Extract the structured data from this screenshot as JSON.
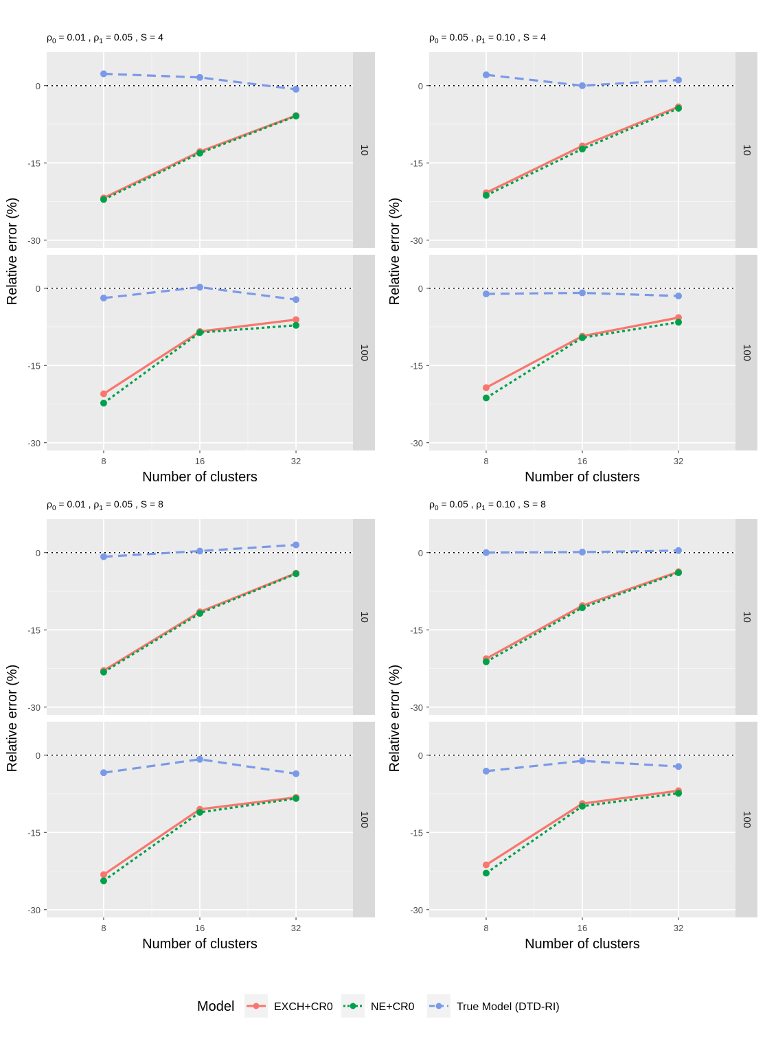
{
  "legend": {
    "title": "Model",
    "items": [
      {
        "label": "EXCH+CR0",
        "color": "#F8766D",
        "dash": "solid"
      },
      {
        "label": "NE+CR0",
        "color": "#00A14B",
        "dash": "dotted"
      },
      {
        "label": "True Model (DTD-RI)",
        "color": "#7A9AE8",
        "dash": "dashed"
      }
    ]
  },
  "chart_data": [
    {
      "type": "line",
      "title": {
        "rho0": "0.01",
        "rho1": "0.05",
        "S": "4"
      },
      "xlabel": "Number of clusters",
      "ylabel": "Relative error (%)",
      "categories": [
        "8",
        "16",
        "32"
      ],
      "yticks": [
        0,
        -15,
        -30
      ],
      "ylim": [
        -31.5,
        6.5
      ],
      "facets": [
        {
          "strip": "10",
          "series": [
            {
              "name": "EXCH+CR0",
              "values": [
                -21.8,
                -12.8,
                -5.8
              ]
            },
            {
              "name": "NE+CR0",
              "values": [
                -22.1,
                -13.1,
                -5.9
              ]
            },
            {
              "name": "True Model (DTD-RI)",
              "values": [
                2.3,
                1.6,
                -0.7
              ]
            }
          ]
        },
        {
          "strip": "100",
          "series": [
            {
              "name": "EXCH+CR0",
              "values": [
                -20.5,
                -8.4,
                -6.1
              ]
            },
            {
              "name": "NE+CR0",
              "values": [
                -22.3,
                -8.6,
                -7.2
              ]
            },
            {
              "name": "True Model (DTD-RI)",
              "values": [
                -1.9,
                0.2,
                -2.2
              ]
            }
          ]
        }
      ]
    },
    {
      "type": "line",
      "title": {
        "rho0": "0.05",
        "rho1": "0.10",
        "S": "4"
      },
      "xlabel": "Number of clusters",
      "ylabel": "Relative error (%)",
      "categories": [
        "8",
        "16",
        "32"
      ],
      "yticks": [
        0,
        -15,
        -30
      ],
      "ylim": [
        -31.5,
        6.5
      ],
      "facets": [
        {
          "strip": "10",
          "series": [
            {
              "name": "EXCH+CR0",
              "values": [
                -20.8,
                -11.7,
                -4.1
              ]
            },
            {
              "name": "NE+CR0",
              "values": [
                -21.3,
                -12.3,
                -4.4
              ]
            },
            {
              "name": "True Model (DTD-RI)",
              "values": [
                2.1,
                0.0,
                1.1
              ]
            }
          ]
        },
        {
          "strip": "100",
          "series": [
            {
              "name": "EXCH+CR0",
              "values": [
                -19.3,
                -9.3,
                -5.7
              ]
            },
            {
              "name": "NE+CR0",
              "values": [
                -21.3,
                -9.6,
                -6.6
              ]
            },
            {
              "name": "True Model (DTD-RI)",
              "values": [
                -1.1,
                -0.9,
                -1.5
              ]
            }
          ]
        }
      ]
    },
    {
      "type": "line",
      "title": {
        "rho0": "0.01",
        "rho1": "0.05",
        "S": "8"
      },
      "xlabel": "Number of clusters",
      "ylabel": "Relative error (%)",
      "categories": [
        "8",
        "16",
        "32"
      ],
      "yticks": [
        0,
        -15,
        -30
      ],
      "ylim": [
        -31.5,
        6.5
      ],
      "facets": [
        {
          "strip": "10",
          "series": [
            {
              "name": "EXCH+CR0",
              "values": [
                -22.9,
                -11.5,
                -4.0
              ]
            },
            {
              "name": "NE+CR0",
              "values": [
                -23.2,
                -11.8,
                -4.1
              ]
            },
            {
              "name": "True Model (DTD-RI)",
              "values": [
                -0.8,
                0.3,
                1.5
              ]
            }
          ]
        },
        {
          "strip": "100",
          "series": [
            {
              "name": "EXCH+CR0",
              "values": [
                -23.2,
                -10.5,
                -8.2
              ]
            },
            {
              "name": "NE+CR0",
              "values": [
                -24.4,
                -11.1,
                -8.4
              ]
            },
            {
              "name": "True Model (DTD-RI)",
              "values": [
                -3.4,
                -0.8,
                -3.6
              ]
            }
          ]
        }
      ]
    },
    {
      "type": "line",
      "title": {
        "rho0": "0.05",
        "rho1": "0.10",
        "S": "8"
      },
      "xlabel": "Number of clusters",
      "ylabel": "Relative error (%)",
      "categories": [
        "8",
        "16",
        "32"
      ],
      "yticks": [
        0,
        -15,
        -30
      ],
      "ylim": [
        -31.5,
        6.5
      ],
      "facets": [
        {
          "strip": "10",
          "series": [
            {
              "name": "EXCH+CR0",
              "values": [
                -20.6,
                -10.3,
                -3.7
              ]
            },
            {
              "name": "NE+CR0",
              "values": [
                -21.2,
                -10.7,
                -3.9
              ]
            },
            {
              "name": "True Model (DTD-RI)",
              "values": [
                0.0,
                0.1,
                0.4
              ]
            }
          ]
        },
        {
          "strip": "100",
          "series": [
            {
              "name": "EXCH+CR0",
              "values": [
                -21.3,
                -9.4,
                -6.9
              ]
            },
            {
              "name": "NE+CR0",
              "values": [
                -22.9,
                -9.9,
                -7.4
              ]
            },
            {
              "name": "True Model (DTD-RI)",
              "values": [
                -3.1,
                -1.1,
                -2.2
              ]
            }
          ]
        }
      ]
    }
  ]
}
